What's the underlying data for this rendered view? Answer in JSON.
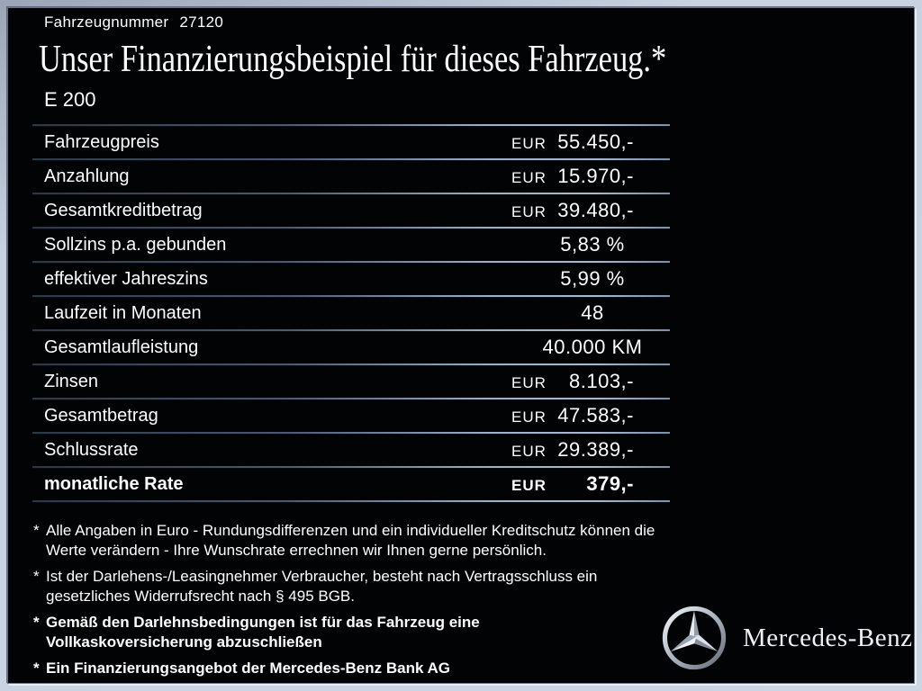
{
  "header": {
    "vehicle_number_label": "Fahrzeugnummer",
    "vehicle_number": "27120",
    "title": "Unser Finanzierungsbeispiel für dieses Fahrzeug.*",
    "model": "E 200"
  },
  "finance_table": {
    "rows": [
      {
        "label": "Fahrzeugpreis",
        "currency": "EUR",
        "value": "55.450,-"
      },
      {
        "label": "Anzahlung",
        "currency": "EUR",
        "value": "15.970,-"
      },
      {
        "label": "Gesamtkreditbetrag",
        "currency": "EUR",
        "value": "39.480,-"
      },
      {
        "label": "Sollzins p.a. gebunden",
        "currency": "",
        "value": "5,83 %"
      },
      {
        "label": "effektiver Jahreszins",
        "currency": "",
        "value": "5,99 %"
      },
      {
        "label": "Laufzeit in Monaten",
        "currency": "",
        "value": "48"
      },
      {
        "label": "Gesamtlaufleistung",
        "currency": "",
        "value": "40.000 KM"
      },
      {
        "label": "Zinsen",
        "currency": "EUR",
        "value": "8.103,-"
      },
      {
        "label": "Gesamtbetrag",
        "currency": "EUR",
        "value": "47.583,-"
      },
      {
        "label": "Schlussrate",
        "currency": "EUR",
        "value": "29.389,-"
      },
      {
        "label": "monatliche Rate",
        "currency": "EUR",
        "value": "379,-",
        "emphasis": true
      }
    ]
  },
  "footnotes": [
    {
      "marker": "*",
      "text": "Alle Angaben in Euro - Rundungsdifferenzen und ein individueller Kreditschutz können die\nWerte verändern - Ihre Wunschrate errechnen wir Ihnen gerne persönlich."
    },
    {
      "marker": "*",
      "text": "Ist der Darlehens-/Leasingnehmer Verbraucher, besteht nach Vertragsschluss ein\ngesetzliches Widerrufsrecht nach § 495 BGB."
    },
    {
      "marker": "*",
      "text": "Gemäß den Darlehnsbedingungen ist für das Fahrzeug eine\nVollkaskoversicherung abzuschließen"
    },
    {
      "marker": "*",
      "text": "Ein Finanzierungsangebot der Mercedes-Benz Bank AG"
    }
  ],
  "brand": {
    "wordmark": "Mercedes-Benz",
    "logo_icon": "mercedes-star-icon"
  },
  "colors": {
    "panel_background": "#020305",
    "frame": "#c7d1e0",
    "text": "#ffffff",
    "divider_dark": "#2e3743",
    "divider_light": "#a9bacf",
    "logo_silver": "#dfe4ec"
  }
}
